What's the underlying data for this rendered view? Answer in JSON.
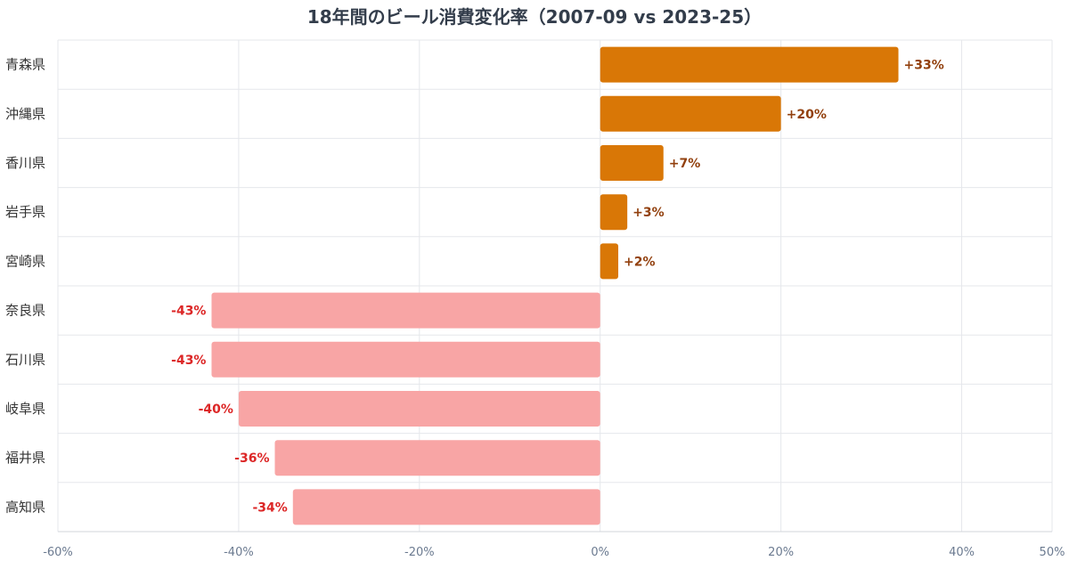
{
  "chart_data": {
    "type": "bar",
    "orientation": "horizontal",
    "title": "18年間のビール消費変化率（2007-09 vs 2023-25）",
    "categories": [
      "青森県",
      "沖縄県",
      "香川県",
      "岩手県",
      "宮崎県",
      "奈良県",
      "石川県",
      "岐阜県",
      "福井県",
      "高知県"
    ],
    "values": [
      33,
      20,
      7,
      3,
      2,
      -43,
      -43,
      -40,
      -36,
      -34
    ],
    "value_labels": [
      "+33%",
      "+20%",
      "+7%",
      "+3%",
      "+2%",
      "-43%",
      "-43%",
      "-40%",
      "-36%",
      "-34%"
    ],
    "xlim": [
      -60,
      50
    ],
    "x_ticks": [
      -60,
      -40,
      -20,
      0,
      20,
      40,
      50
    ],
    "x_tick_labels": [
      "-60%",
      "-40%",
      "-20%",
      "0%",
      "20%",
      "40%",
      "50%"
    ],
    "xlabel": "",
    "ylabel": "",
    "grid": true,
    "legend": "none",
    "colors": {
      "positive_bar": "#d97706",
      "negative_bar": "#f8a5a5",
      "positive_label": "#92400e",
      "negative_label": "#dc2626"
    }
  }
}
